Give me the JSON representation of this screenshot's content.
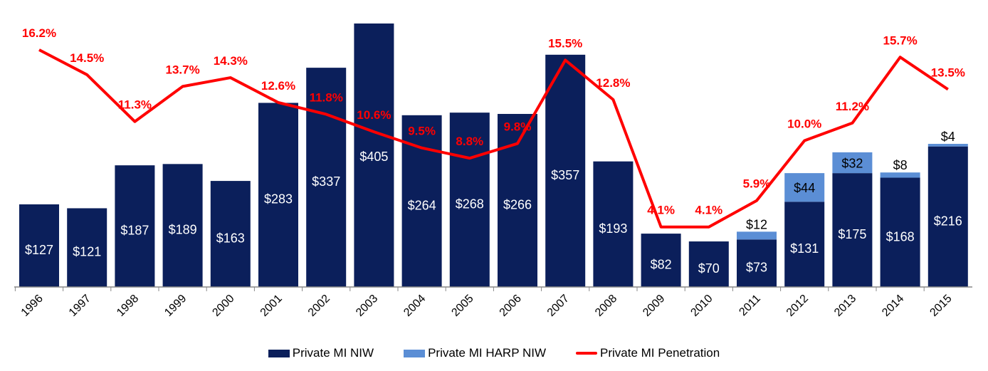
{
  "chart_data": {
    "type": "bar",
    "categories": [
      "1996",
      "1997",
      "1998",
      "1999",
      "2000",
      "2001",
      "2002",
      "2003",
      "2004",
      "2005",
      "2006",
      "2007",
      "2008",
      "2009",
      "2010",
      "2011",
      "2012",
      "2013",
      "2014",
      "2015"
    ],
    "series": [
      {
        "name": "Private MI NIW",
        "kind": "bar",
        "stack": "niw",
        "color": "#0b1f5b",
        "values": [
          127,
          121,
          187,
          189,
          163,
          283,
          337,
          405,
          264,
          268,
          266,
          357,
          193,
          82,
          70,
          73,
          131,
          175,
          168,
          216
        ]
      },
      {
        "name": "Private MI HARP NIW",
        "kind": "bar",
        "stack": "niw",
        "color": "#5b8ed5",
        "values": [
          null,
          null,
          null,
          null,
          null,
          null,
          null,
          null,
          null,
          null,
          null,
          null,
          null,
          null,
          null,
          12,
          44,
          32,
          8,
          4
        ]
      },
      {
        "name": "Private MI Penetration",
        "kind": "line",
        "axis": "secondary",
        "unit": "%",
        "color": "#ff0000",
        "values": [
          16.2,
          14.5,
          11.3,
          13.7,
          14.3,
          12.6,
          11.8,
          10.6,
          9.5,
          8.8,
          9.8,
          15.5,
          12.8,
          4.1,
          4.1,
          5.9,
          10.0,
          11.2,
          15.7,
          13.5
        ]
      }
    ],
    "bar_label_prefix": "$",
    "ylim": [
      0,
      405
    ],
    "y2lim": [
      0,
      16.2
    ],
    "grid": false,
    "legend": "bottom"
  }
}
